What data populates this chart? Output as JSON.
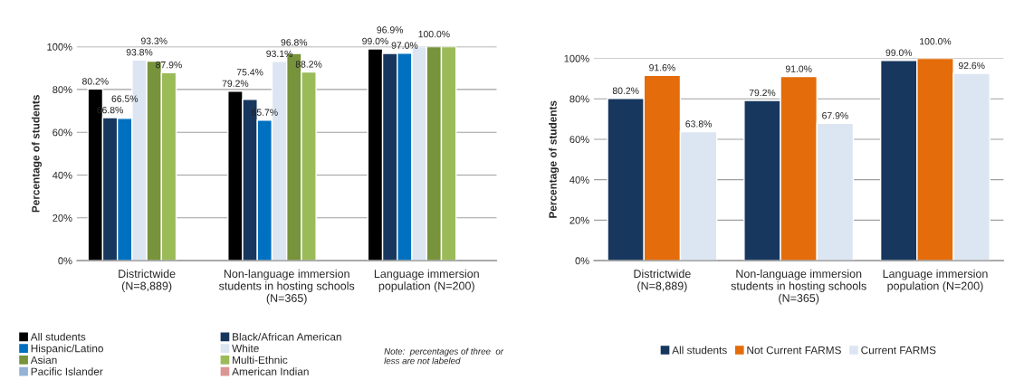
{
  "chart_data": [
    {
      "type": "bar",
      "ylabel": "Percentage of students",
      "categories": [
        "Districtwide\n(N=8,889)",
        "Non-language immersion\nstudents in hosting schools\n(N=365)",
        "Language immersion\npopulation (N=200)"
      ],
      "series": [
        {
          "name": "All students",
          "color": "#000000",
          "values": [
            80.2,
            79.2,
            99.0
          ],
          "value_labels": [
            "80.2%",
            "79.2%",
            "99.0%"
          ]
        },
        {
          "name": "Black/African American",
          "color": "#17375e",
          "values": [
            66.8,
            75.4,
            96.9
          ],
          "value_labels": [
            "66.8%",
            "75.4%",
            "96.9%"
          ]
        },
        {
          "name": "Hispanic/Latino",
          "color": "#0070c0",
          "values": [
            66.5,
            65.7,
            97.0
          ],
          "value_labels": [
            "66.5%",
            "65.7%",
            "97.0%"
          ]
        },
        {
          "name": "White",
          "color": "#dce6f2",
          "values": [
            93.8,
            93.1,
            100
          ],
          "value_labels": [
            "93.8%",
            "93.1%",
            null
          ]
        },
        {
          "name": "Asian",
          "color": "#77933c",
          "values": [
            93.3,
            96.8,
            100
          ],
          "value_labels": [
            "93.3%",
            "96.8%",
            "100.0%"
          ]
        },
        {
          "name": "Multi-Ethnic",
          "color": "#9bbb59",
          "values": [
            87.9,
            88.2,
            100
          ],
          "value_labels": [
            "87.9%",
            "88.2%",
            null
          ]
        },
        {
          "name": "Pacific Islander",
          "color": "#95b3d7",
          "values": [
            null,
            null,
            null
          ]
        },
        {
          "name": "American Indian",
          "color": "#d99694",
          "values": [
            null,
            null,
            null
          ]
        }
      ],
      "ylim": [
        0,
        100
      ],
      "yticks": [
        {
          "value": 0,
          "label": "0%"
        },
        {
          "value": 20,
          "label": "20%"
        },
        {
          "value": 40,
          "label": "40%"
        },
        {
          "value": 60,
          "label": "60%"
        },
        {
          "value": 80,
          "label": "80%"
        },
        {
          "value": 100,
          "label": "100%"
        }
      ],
      "grid": "y",
      "legend": "bottom",
      "annotations": [
        "Note:  percentages of three  or\nless are not labeled"
      ]
    },
    {
      "type": "bar",
      "ylabel": "Percentage of students",
      "categories": [
        "Districtwide\n(N=8,889)",
        "Non-language immersion\nstudents in hosting schools\n(N=365)",
        "Language immersion\npopulation (N=200)"
      ],
      "series": [
        {
          "name": "All students",
          "color": "#17375e",
          "values": [
            80.2,
            79.2,
            99.0
          ],
          "value_labels": [
            "80.2%",
            "79.2%",
            "99.0%"
          ]
        },
        {
          "name": "Not Current FARMS",
          "color": "#e46c0a",
          "values": [
            91.6,
            91.0,
            100.0
          ],
          "value_labels": [
            "91.6%",
            "91.0%",
            "100.0%"
          ]
        },
        {
          "name": "Current FARMS",
          "color": "#dce6f2",
          "values": [
            63.8,
            67.9,
            92.6
          ],
          "value_labels": [
            "63.8%",
            "67.9%",
            "92.6%"
          ]
        }
      ],
      "ylim": [
        0,
        100
      ],
      "yticks": [
        {
          "value": 0,
          "label": "0%"
        },
        {
          "value": 20,
          "label": "20%"
        },
        {
          "value": 40,
          "label": "40%"
        },
        {
          "value": 60,
          "label": "60%"
        },
        {
          "value": 80,
          "label": "80%"
        },
        {
          "value": 100,
          "label": "100%"
        }
      ],
      "grid": "y",
      "legend": "bottom"
    }
  ]
}
